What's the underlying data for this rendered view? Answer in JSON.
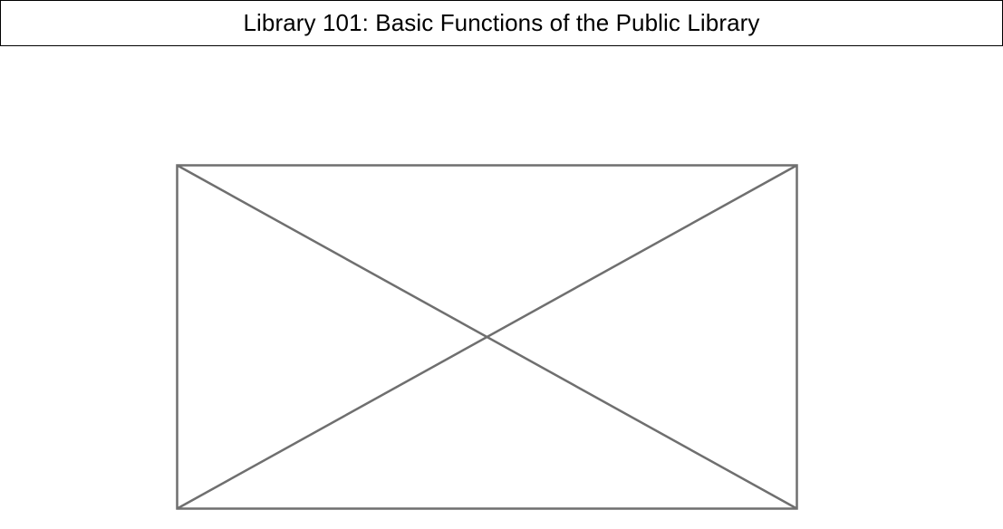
{
  "header": {
    "title": "Library 101: Basic Functions of the Public Library"
  },
  "placeholder": {
    "icon": "image-placeholder-icon",
    "stroke_color": "#6f6f6f"
  }
}
